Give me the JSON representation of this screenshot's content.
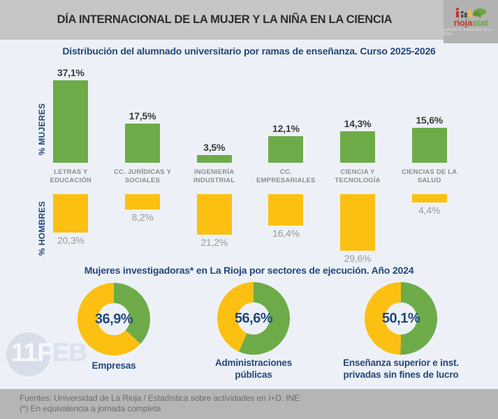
{
  "header": {
    "title": "DÍA INTERNACIONAL DE LA MUJER Y LA NIÑA EN LA CIENCIA",
    "logo": {
      "brand_part1": "rioja",
      "brand_part2": "stat",
      "tagline": "Instituto de Estadística de La Rioja"
    }
  },
  "bar_section": {
    "title": "Distribución del alumnado universitario por ramas de enseñanza. Curso 2025-2026",
    "women_axis": "% MUJERES",
    "men_axis": "% HOMBRES",
    "items": [
      {
        "label_line1": "LETRAS Y",
        "label_line2": "EDUCACIÓN",
        "women_label": "37,1%",
        "women_value": 37.1,
        "men_label": "20,3%",
        "men_value": 20.3
      },
      {
        "label_line1": "CC. JURÍDICAS Y",
        "label_line2": "SOCIALES",
        "women_label": "17,5%",
        "women_value": 17.5,
        "men_label": "8,2%",
        "men_value": 8.2
      },
      {
        "label_line1": "INGENIERÍA",
        "label_line2": "INDUSTRIAL",
        "women_label": "3,5%",
        "women_value": 3.5,
        "men_label": "21,2%",
        "men_value": 21.2
      },
      {
        "label_line1": "CC.",
        "label_line2": "EMPRESARIALES",
        "women_label": "12,1%",
        "women_value": 12.1,
        "men_label": "16,4%",
        "men_value": 16.4
      },
      {
        "label_line1": "CIENCIA Y",
        "label_line2": "TECNOLOGÍA",
        "women_label": "14,3%",
        "women_value": 14.3,
        "men_label": "29,6%",
        "men_value": 29.6
      },
      {
        "label_line1": "CIENCIAS DE LA",
        "label_line2": "SALUD",
        "women_label": "15,6%",
        "women_value": 15.6,
        "men_label": "4,4%",
        "men_value": 4.4
      }
    ]
  },
  "donut_section": {
    "title": "Mujeres investigadoras* en La Rioja por sectores de ejecución. Año 2024",
    "donuts": [
      {
        "value_label": "36,9%",
        "pct": 36.9,
        "label": "Empresas"
      },
      {
        "value_label": "56,6%",
        "pct": 56.6,
        "label": "Administraciones\npúblicas"
      },
      {
        "value_label": "50,1%",
        "pct": 50.1,
        "label": "Enseñanza superior e inst.\nprivadas sin fines de lucro"
      }
    ]
  },
  "watermark": {
    "part1": "11F",
    "part2": "EB"
  },
  "footer": {
    "line1": "Fuentes: Universidad de La Rioja / Estadística sobre actividades en I+D. INE",
    "line2": "(*) En equivalencia a jornada completa"
  },
  "colors": {
    "green": "#6dab49",
    "yellow": "#fcc013",
    "navy": "#24477c",
    "header_gray": "#c6c6c6",
    "footer_gray": "#b5b5b5",
    "background": "#edf1f7",
    "logo_red": "#c0392b"
  },
  "chart_data": [
    {
      "type": "bar",
      "title": "Distribución del alumnado universitario por ramas de enseñanza. Curso 2025-2026",
      "categories": [
        "LETRAS Y EDUCACIÓN",
        "CC. JURÍDICAS Y SOCIALES",
        "INGENIERÍA INDUSTRIAL",
        "CC. EMPRESARIALES",
        "CIENCIA Y TECNOLOGÍA",
        "CIENCIAS DE LA SALUD"
      ],
      "series": [
        {
          "name": "% MUJERES",
          "color": "#6dab49",
          "direction": "up",
          "values": [
            37.1,
            17.5,
            3.5,
            12.1,
            14.3,
            15.6
          ]
        },
        {
          "name": "% HOMBRES",
          "color": "#fcc013",
          "direction": "down",
          "values": [
            20.3,
            8.2,
            21.2,
            16.4,
            29.6,
            4.4
          ]
        }
      ],
      "unit": "%",
      "legend_position": "left-rotated",
      "grid": false
    },
    {
      "type": "pie",
      "title": "Mujeres investigadoras* en La Rioja por sectores de ejecución. Año 2024",
      "categories": [
        "Empresas",
        "Administraciones públicas",
        "Enseñanza superior e inst. privadas sin fines de lucro"
      ],
      "values": [
        36.9,
        56.6,
        50.1
      ],
      "unit": "%",
      "note": "Tres donuts independientes: porcentaje de mujeres (verde) frente a resto (amarillo)",
      "colors": [
        "#6dab49",
        "#fcc013"
      ]
    }
  ]
}
